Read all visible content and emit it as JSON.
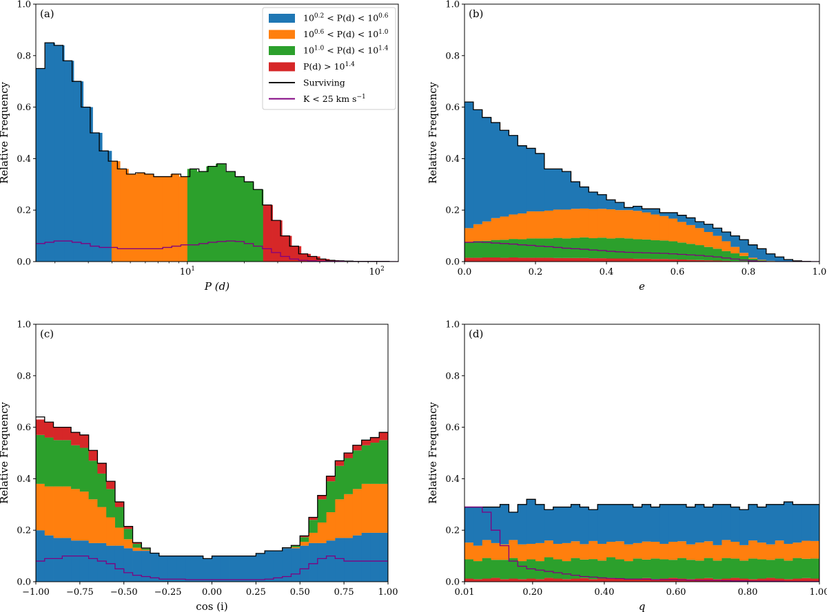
{
  "colors": {
    "blue": "#1f77b4",
    "orange": "#ff7f0e",
    "green": "#2ca02c",
    "red": "#d62728",
    "surviving": "#000000",
    "k_curve": "#800080"
  },
  "legend": [
    {
      "label_prefix": "10",
      "label_sup1": "0.2",
      "label_mid": " < P(d) < 10",
      "label_sup2": "0.6",
      "color": "#1f77b4",
      "kind": "patch"
    },
    {
      "label_prefix": "10",
      "label_sup1": "0.6",
      "label_mid": " < P(d) < 10",
      "label_sup2": "1.0",
      "color": "#ff7f0e",
      "kind": "patch"
    },
    {
      "label_prefix": "10",
      "label_sup1": "1.0",
      "label_mid": " < P(d) < 10",
      "label_sup2": "1.4",
      "color": "#2ca02c",
      "kind": "patch"
    },
    {
      "label_prefix": "P(d) > 10",
      "label_sup1": "1.4",
      "label_mid": "",
      "label_sup2": "",
      "color": "#d62728",
      "kind": "patch"
    },
    {
      "label_prefix": "Surviving",
      "label_sup1": "",
      "label_mid": "",
      "label_sup2": "",
      "color": "#000000",
      "kind": "line"
    },
    {
      "label_prefix": "K < 25 km s",
      "label_sup1": "−1",
      "label_mid": "",
      "label_sup2": "",
      "color": "#800080",
      "kind": "line"
    }
  ],
  "chart_data": [
    {
      "type": "bar",
      "panel": "(a)",
      "xlabel": "P (d)",
      "ylabel": "Relative Frequency",
      "xscale": "log",
      "ylim": [
        0,
        1
      ],
      "xlim": [
        1.585,
        130
      ],
      "yticks": [
        "0.0",
        "0.2",
        "0.4",
        "0.6",
        "0.8",
        "1.0"
      ],
      "xticks": [
        {
          "value": 10,
          "label": "10",
          "sup": "1"
        },
        {
          "value": 100,
          "label": "10",
          "sup": "2"
        }
      ],
      "colored_series": [
        {
          "name": "10^0.2 < P(d) < 10^0.6",
          "color": "blue",
          "x_start": 1.585,
          "x_end": 3.981,
          "values": [
            0.75,
            0.85,
            0.84,
            0.78,
            0.7,
            0.6,
            0.5,
            0.43
          ]
        },
        {
          "name": "10^0.6 < P(d) < 10^1.0",
          "color": "orange",
          "x_start": 3.981,
          "x_end": 10.0,
          "values": [
            0.39,
            0.36,
            0.34,
            0.345,
            0.34,
            0.33,
            0.33,
            0.34,
            0.33
          ]
        },
        {
          "name": "10^1.0 < P(d) < 10^1.4",
          "color": "green",
          "x_start": 10.0,
          "x_end": 25.12,
          "values": [
            0.36,
            0.35,
            0.37,
            0.38,
            0.35,
            0.33,
            0.31,
            0.28
          ]
        },
        {
          "name": "P(d) > 10^1.4",
          "color": "red",
          "x_start": 25.12,
          "x_end": 63.1,
          "values": [
            0.22,
            0.16,
            0.1,
            0.06,
            0.03,
            0.02,
            0.01,
            0.005
          ]
        }
      ],
      "surviving_x_start": 1.585,
      "surviving_x_end": 130,
      "surviving": [
        0.75,
        0.85,
        0.84,
        0.78,
        0.7,
        0.6,
        0.5,
        0.43,
        0.39,
        0.36,
        0.34,
        0.345,
        0.34,
        0.33,
        0.33,
        0.34,
        0.33,
        0.36,
        0.35,
        0.37,
        0.38,
        0.35,
        0.33,
        0.31,
        0.28,
        0.22,
        0.16,
        0.1,
        0.06,
        0.03,
        0.02,
        0.01,
        0.005,
        0.003,
        0.002,
        0.001,
        0.001,
        0.001,
        0.001,
        0.0
      ],
      "k_curve": [
        0.07,
        0.075,
        0.08,
        0.08,
        0.075,
        0.07,
        0.06,
        0.055,
        0.055,
        0.05,
        0.05,
        0.05,
        0.05,
        0.05,
        0.055,
        0.06,
        0.065,
        0.065,
        0.07,
        0.075,
        0.078,
        0.08,
        0.078,
        0.07,
        0.06,
        0.05,
        0.035,
        0.02,
        0.01,
        0.005,
        0.003,
        0.002,
        0.001,
        0.001,
        0.0,
        0.0,
        0.0,
        0.0,
        0.0,
        0.0
      ]
    },
    {
      "type": "bar",
      "panel": "(b)",
      "xlabel": "e",
      "ylabel": "Relative Frequency",
      "ylim": [
        0,
        1
      ],
      "xlim": [
        0,
        1
      ],
      "yticks": [
        "0.0",
        "0.2",
        "0.4",
        "0.6",
        "0.8",
        "1.0"
      ],
      "xticks": [
        "0.0",
        "0.2",
        "0.4",
        "0.6",
        "0.8",
        "1.0"
      ],
      "stacked": {
        "red": [
          0.015,
          0.015,
          0.016,
          0.016,
          0.015,
          0.016,
          0.015,
          0.015,
          0.015,
          0.015,
          0.014,
          0.014,
          0.014,
          0.014,
          0.013,
          0.013,
          0.012,
          0.012,
          0.012,
          0.011,
          0.011,
          0.01,
          0.01,
          0.009,
          0.008,
          0.007,
          0.006,
          0.005,
          0.004,
          0.003,
          0.002,
          0.002,
          0.001,
          0.001,
          0.0,
          0.0,
          0.0,
          0.0,
          0.0,
          0.0
        ],
        "green": [
          0.06,
          0.065,
          0.065,
          0.068,
          0.07,
          0.072,
          0.072,
          0.075,
          0.075,
          0.075,
          0.078,
          0.076,
          0.078,
          0.08,
          0.078,
          0.08,
          0.078,
          0.08,
          0.078,
          0.076,
          0.075,
          0.073,
          0.072,
          0.07,
          0.066,
          0.062,
          0.058,
          0.052,
          0.046,
          0.038,
          0.03,
          0.02,
          0.01,
          0.004,
          0.002,
          0.001,
          0.0,
          0.0,
          0.0,
          0.0
        ],
        "orange": [
          0.055,
          0.065,
          0.075,
          0.085,
          0.09,
          0.095,
          0.1,
          0.105,
          0.105,
          0.108,
          0.11,
          0.112,
          0.113,
          0.112,
          0.113,
          0.112,
          0.113,
          0.108,
          0.11,
          0.11,
          0.105,
          0.1,
          0.095,
          0.088,
          0.08,
          0.073,
          0.066,
          0.058,
          0.05,
          0.038,
          0.025,
          0.012,
          0.004,
          0.002,
          0.001,
          0.0,
          0.0,
          0.0,
          0.0,
          0.0
        ]
      },
      "surviving": [
        0.62,
        0.59,
        0.56,
        0.54,
        0.51,
        0.49,
        0.45,
        0.44,
        0.42,
        0.36,
        0.36,
        0.35,
        0.31,
        0.29,
        0.27,
        0.26,
        0.24,
        0.23,
        0.21,
        0.215,
        0.205,
        0.205,
        0.19,
        0.19,
        0.18,
        0.17,
        0.155,
        0.145,
        0.13,
        0.115,
        0.1,
        0.085,
        0.065,
        0.05,
        0.03,
        0.018,
        0.008,
        0.003,
        0.001,
        0.0
      ],
      "k_curve": [
        0.075,
        0.076,
        0.075,
        0.072,
        0.07,
        0.068,
        0.065,
        0.063,
        0.06,
        0.058,
        0.055,
        0.052,
        0.05,
        0.048,
        0.045,
        0.043,
        0.04,
        0.038,
        0.036,
        0.035,
        0.034,
        0.033,
        0.032,
        0.03,
        0.028,
        0.026,
        0.024,
        0.021,
        0.018,
        0.014,
        0.01,
        0.006,
        0.003,
        0.001,
        0.0,
        0.0,
        0.0,
        0.0,
        0.0,
        0.0
      ]
    },
    {
      "type": "bar",
      "panel": "(c)",
      "xlabel": "cos (i)",
      "ylabel": "Relative Frequency",
      "ylim": [
        0,
        1
      ],
      "xlim": [
        -1,
        1
      ],
      "yticks": [
        "0.0",
        "0.2",
        "0.4",
        "0.6",
        "0.8",
        "1.0"
      ],
      "xticks": [
        "−1.00",
        "−0.75",
        "−0.50",
        "−0.25",
        "0.00",
        "0.25",
        "0.50",
        "0.75",
        "1.00"
      ],
      "stacked": {
        "blue": [
          0.2,
          0.18,
          0.17,
          0.17,
          0.16,
          0.16,
          0.15,
          0.15,
          0.14,
          0.14,
          0.13,
          0.12,
          0.12,
          0.11,
          0.1,
          0.1,
          0.1,
          0.1,
          0.1,
          0.09,
          0.1,
          0.1,
          0.1,
          0.1,
          0.1,
          0.11,
          0.12,
          0.12,
          0.13,
          0.13,
          0.14,
          0.15,
          0.15,
          0.16,
          0.17,
          0.17,
          0.18,
          0.19,
          0.19,
          0.19
        ],
        "orange": [
          0.18,
          0.19,
          0.2,
          0.2,
          0.2,
          0.19,
          0.17,
          0.14,
          0.11,
          0.07,
          0.035,
          0.012,
          0.004,
          0.001,
          0.0,
          0.0,
          0.0,
          0.0,
          0.0,
          0.0,
          0.0,
          0.0,
          0.0,
          0.0,
          0.0,
          0.0,
          0.0,
          0.0,
          0.001,
          0.004,
          0.015,
          0.04,
          0.08,
          0.11,
          0.15,
          0.17,
          0.18,
          0.19,
          0.19,
          0.19
        ],
        "green": [
          0.19,
          0.19,
          0.18,
          0.18,
          0.17,
          0.17,
          0.15,
          0.13,
          0.11,
          0.08,
          0.04,
          0.015,
          0.005,
          0.001,
          0.0,
          0.0,
          0.0,
          0.0,
          0.0,
          0.0,
          0.0,
          0.0,
          0.0,
          0.0,
          0.0,
          0.0,
          0.0,
          0.0,
          0.001,
          0.005,
          0.018,
          0.05,
          0.09,
          0.12,
          0.13,
          0.14,
          0.15,
          0.15,
          0.16,
          0.17
        ],
        "red": [
          0.06,
          0.06,
          0.05,
          0.05,
          0.05,
          0.05,
          0.04,
          0.04,
          0.03,
          0.02,
          0.01,
          0.005,
          0.002,
          0.0,
          0.0,
          0.0,
          0.0,
          0.0,
          0.0,
          0.0,
          0.0,
          0.0,
          0.0,
          0.0,
          0.0,
          0.0,
          0.0,
          0.0,
          0.0,
          0.002,
          0.005,
          0.01,
          0.015,
          0.02,
          0.02,
          0.02,
          0.02,
          0.02,
          0.02,
          0.03
        ]
      },
      "surviving": [
        0.64,
        0.62,
        0.6,
        0.6,
        0.58,
        0.57,
        0.51,
        0.46,
        0.39,
        0.31,
        0.215,
        0.152,
        0.131,
        0.111,
        0.1,
        0.1,
        0.1,
        0.1,
        0.1,
        0.09,
        0.1,
        0.1,
        0.1,
        0.1,
        0.1,
        0.11,
        0.12,
        0.12,
        0.132,
        0.141,
        0.178,
        0.25,
        0.335,
        0.41,
        0.47,
        0.5,
        0.53,
        0.55,
        0.56,
        0.58
      ],
      "k_curve": [
        0.08,
        0.09,
        0.09,
        0.1,
        0.1,
        0.1,
        0.09,
        0.08,
        0.07,
        0.05,
        0.035,
        0.025,
        0.02,
        0.015,
        0.01,
        0.01,
        0.01,
        0.008,
        0.008,
        0.008,
        0.008,
        0.008,
        0.008,
        0.008,
        0.008,
        0.008,
        0.01,
        0.015,
        0.02,
        0.03,
        0.05,
        0.07,
        0.09,
        0.1,
        0.09,
        0.08,
        0.08,
        0.08,
        0.08,
        0.08
      ]
    },
    {
      "type": "bar",
      "panel": "(d)",
      "xlabel": "q",
      "ylabel": "Relative Frequency",
      "ylim": [
        0,
        1
      ],
      "xlim": [
        0.01,
        1
      ],
      "yticks": [
        "0.0",
        "0.2",
        "0.4",
        "0.6",
        "0.8",
        "1.0"
      ],
      "xticks": [
        {
          "value": 0.01,
          "label": "0.01"
        },
        {
          "value": 0.2,
          "label": "0.20"
        },
        {
          "value": 0.4,
          "label": "0.40"
        },
        {
          "value": 0.6,
          "label": "0.60"
        },
        {
          "value": 0.8,
          "label": "0.80"
        },
        {
          "value": 1.0,
          "label": "1.00"
        }
      ],
      "stacked": {
        "red": [
          0.012,
          0.01,
          0.012,
          0.015,
          0.01,
          0.012,
          0.01,
          0.012,
          0.01,
          0.015,
          0.012,
          0.01,
          0.012,
          0.014,
          0.01,
          0.012,
          0.015,
          0.012,
          0.01,
          0.012,
          0.014,
          0.01,
          0.012,
          0.015,
          0.012,
          0.01,
          0.012,
          0.014,
          0.01,
          0.012,
          0.015,
          0.012,
          0.01,
          0.012,
          0.015,
          0.012,
          0.01,
          0.012,
          0.014,
          0.012
        ],
        "green": [
          0.075,
          0.07,
          0.08,
          0.07,
          0.075,
          0.08,
          0.07,
          0.075,
          0.07,
          0.08,
          0.075,
          0.07,
          0.08,
          0.072,
          0.078,
          0.07,
          0.08,
          0.075,
          0.07,
          0.078,
          0.072,
          0.08,
          0.075,
          0.07,
          0.08,
          0.075,
          0.07,
          0.078,
          0.072,
          0.08,
          0.075,
          0.07,
          0.08,
          0.075,
          0.07,
          0.078,
          0.072,
          0.08,
          0.075,
          0.078
        ],
        "orange": [
          0.065,
          0.06,
          0.07,
          0.065,
          0.06,
          0.07,
          0.065,
          0.06,
          0.07,
          0.065,
          0.06,
          0.07,
          0.065,
          0.06,
          0.07,
          0.065,
          0.06,
          0.07,
          0.065,
          0.06,
          0.07,
          0.065,
          0.06,
          0.07,
          0.065,
          0.06,
          0.07,
          0.065,
          0.06,
          0.07,
          0.065,
          0.06,
          0.07,
          0.065,
          0.06,
          0.07,
          0.065,
          0.06,
          0.07,
          0.068
        ]
      },
      "surviving": [
        0.29,
        0.29,
        0.29,
        0.29,
        0.3,
        0.27,
        0.3,
        0.32,
        0.3,
        0.28,
        0.29,
        0.29,
        0.3,
        0.29,
        0.28,
        0.3,
        0.3,
        0.3,
        0.3,
        0.29,
        0.3,
        0.29,
        0.3,
        0.3,
        0.3,
        0.29,
        0.3,
        0.29,
        0.3,
        0.3,
        0.29,
        0.28,
        0.3,
        0.29,
        0.3,
        0.3,
        0.31,
        0.3,
        0.3,
        0.3
      ],
      "k_curve": [
        0.29,
        0.29,
        0.27,
        0.2,
        0.14,
        0.08,
        0.06,
        0.05,
        0.045,
        0.04,
        0.035,
        0.03,
        0.025,
        0.02,
        0.018,
        0.015,
        0.013,
        0.012,
        0.01,
        0.01,
        0.01,
        0.008,
        0.008,
        0.008,
        0.007,
        0.006,
        0.005,
        0.005,
        0.005,
        0.004,
        0.003,
        0.003,
        0.002,
        0.002,
        0.002,
        0.002,
        0.001,
        0.001,
        0.001,
        0.001
      ]
    }
  ]
}
